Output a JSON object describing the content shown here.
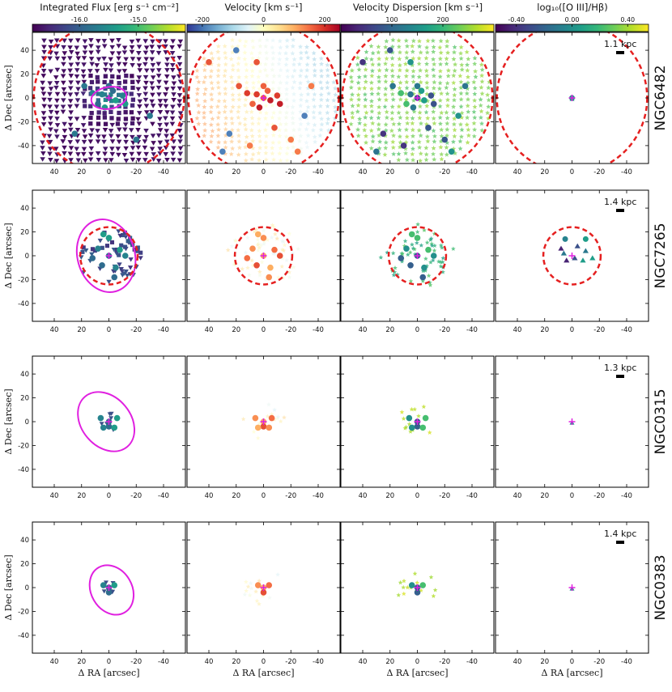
{
  "figure": {
    "colorbars": [
      {
        "title": "Integrated Flux [erg s⁻¹ cm⁻²]",
        "ticks": [
          "-16.0",
          "-15.0"
        ],
        "tick_values": [
          -16.0,
          -15.0
        ],
        "range": [
          -16.8,
          -14.2
        ],
        "colormap": "viridis"
      },
      {
        "title": "Velocity [km s⁻¹]",
        "ticks": [
          "-200",
          "0",
          "200"
        ],
        "tick_values": [
          -200,
          0,
          200
        ],
        "range": [
          -250,
          250
        ],
        "colormap": "RdYlBu_r"
      },
      {
        "title": "Velocity Dispersion [km s⁻¹]",
        "ticks": [
          "100",
          "200"
        ],
        "tick_values": [
          100,
          200
        ],
        "range": [
          0,
          300
        ],
        "colormap": "viridis"
      },
      {
        "title": "log₁₀([O III]/Hβ)",
        "ticks": [
          "-0.40",
          "0.00",
          "0.40"
        ],
        "tick_values": [
          -0.4,
          0.0,
          0.4
        ],
        "range": [
          -0.55,
          0.55
        ],
        "colormap": "viridis"
      }
    ],
    "xlabel": "Δ RA [arcsec]",
    "ylabel": "Δ Dec [arcsec]",
    "x_ticks": [
      "40",
      "20",
      "0",
      "-20",
      "-40"
    ],
    "y_ticks": [
      "40",
      "20",
      "0",
      "-20",
      "-40"
    ]
  },
  "chart_data": {
    "type": "scatter",
    "xlim": [
      56,
      -56
    ],
    "ylim": [
      -55,
      55
    ],
    "x_tick_values": [
      40,
      20,
      0,
      -20,
      -40
    ],
    "y_tick_values": [
      40,
      20,
      0,
      -20,
      -40
    ],
    "galaxies": [
      {
        "name": "NGC6482",
        "scale_label": "1.1 kpc",
        "ellipse": {
          "cx": 0,
          "cy": 0,
          "rx": 13,
          "ry": 8,
          "angle": -10
        },
        "red_circle_radius": 55,
        "flux_dense": true,
        "vel_dense": true,
        "sigma_dense": true,
        "core": [
          [
            0,
            0
          ],
          [
            5,
            3
          ],
          [
            -5,
            -2
          ],
          [
            8,
            -5
          ],
          [
            -10,
            2
          ],
          [
            3,
            -8
          ],
          [
            -3,
            6
          ],
          [
            12,
            4
          ],
          [
            -12,
            -5
          ],
          [
            0,
            10
          ]
        ],
        "cloud": [
          [
            25,
            -30
          ],
          [
            -20,
            -35
          ],
          [
            18,
            10
          ],
          [
            -30,
            -15
          ],
          [
            10,
            -40
          ],
          [
            -8,
            -25
          ],
          [
            30,
            -45
          ],
          [
            -25,
            -45
          ],
          [
            40,
            30
          ],
          [
            20,
            40
          ],
          [
            -35,
            10
          ],
          [
            5,
            30
          ]
        ]
      },
      {
        "name": "NGC7265",
        "scale_label": "1.4 kpc",
        "ellipse": {
          "cx": 2,
          "cy": 0,
          "rx": 21,
          "ry": 27,
          "angle": -15
        },
        "red_circle_radius": 21,
        "flux_dense": false,
        "vel_dense": false,
        "sigma_dense": false,
        "core": [
          [
            0,
            0
          ],
          [
            8,
            6
          ],
          [
            -8,
            5
          ],
          [
            5,
            -8
          ],
          [
            -5,
            -10
          ],
          [
            0,
            15
          ],
          [
            12,
            -2
          ],
          [
            -12,
            0
          ],
          [
            4,
            18
          ],
          [
            -4,
            -18
          ]
        ],
        "cloud": [
          [
            15,
            10
          ],
          [
            -15,
            -10
          ],
          [
            18,
            -5
          ],
          [
            -18,
            8
          ],
          [
            10,
            15
          ],
          [
            -10,
            -15
          ]
        ]
      },
      {
        "name": "NGC0315",
        "scale_label": "1.3 kpc",
        "ellipse": {
          "cx": 2,
          "cy": 0,
          "rx": 18,
          "ry": 24,
          "angle": -40
        },
        "red_circle_radius": 0,
        "flux_dense": false,
        "vel_dense": false,
        "sigma_dense": false,
        "core": [
          [
            0,
            0
          ],
          [
            6,
            3
          ],
          [
            -6,
            3
          ],
          [
            0,
            -4
          ],
          [
            4,
            -5
          ],
          [
            -4,
            -5
          ]
        ],
        "cloud": [
          [
            8,
            6
          ],
          [
            -8,
            6
          ],
          [
            10,
            -3
          ],
          [
            -10,
            -3
          ]
        ]
      },
      {
        "name": "NGC0383",
        "scale_label": "1.4 kpc",
        "ellipse": {
          "cx": -2,
          "cy": -2,
          "rx": 15,
          "ry": 19,
          "angle": -30
        },
        "red_circle_radius": 0,
        "flux_dense": false,
        "vel_dense": false,
        "sigma_dense": false,
        "core": [
          [
            0,
            0
          ],
          [
            4,
            2
          ],
          [
            -4,
            2
          ],
          [
            0,
            -4
          ]
        ],
        "cloud": [
          [
            6,
            -6
          ],
          [
            -6,
            -6
          ],
          [
            8,
            2
          ],
          [
            -8,
            2
          ],
          [
            2,
            -9
          ]
        ]
      }
    ]
  },
  "colors": {
    "ellipse": "#e020e0",
    "circle": "#e52020",
    "cross": "#e020e0",
    "scalebar": "#000000"
  }
}
